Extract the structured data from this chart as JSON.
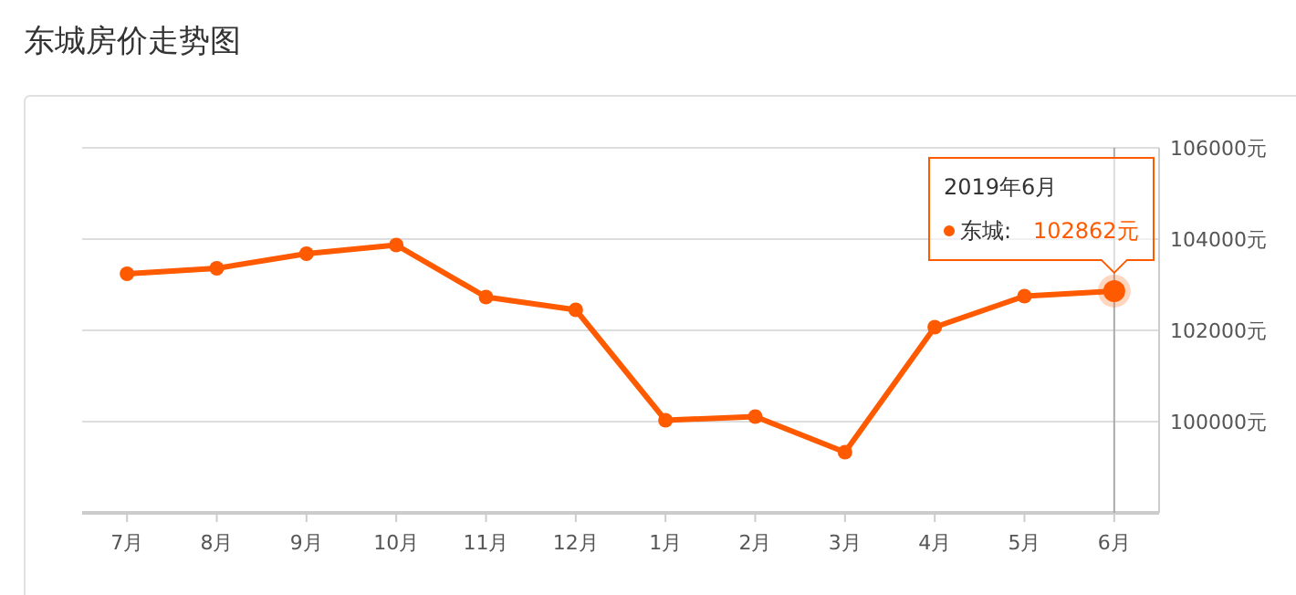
{
  "chart_data": {
    "type": "line",
    "title": "东城房价走势图",
    "categories": [
      "7月",
      "8月",
      "9月",
      "10月",
      "11月",
      "12月",
      "1月",
      "2月",
      "3月",
      "4月",
      "5月",
      "6月"
    ],
    "series": [
      {
        "color": "#ff5a00",
        "values": [
          103240,
          103360,
          103680,
          103870,
          102730,
          102450,
          100030,
          100110,
          99330,
          102070,
          102750,
          102862
        ],
        "value_labels": [
          null,
          null,
          null,
          null,
          null,
          null,
          null,
          null,
          null,
          null,
          null,
          "102862元"
        ]
      }
    ],
    "ylim": [
      98000,
      106000
    ],
    "yticks": [
      {
        "value": 98000,
        "label": null
      },
      {
        "value": 100000,
        "label": "100000元"
      },
      {
        "value": 102000,
        "label": "102000元"
      },
      {
        "value": 104000,
        "label": "104000元"
      },
      {
        "value": 106000,
        "label": "106000元"
      }
    ],
    "grid": "y",
    "marker": "circle",
    "line_style": "solid",
    "annotations": [
      "2019年6月",
      "东城:"
    ],
    "ref_lines": [
      {
        "axis": "x",
        "value": "6月",
        "color": "#aaaaaa"
      }
    ]
  }
}
